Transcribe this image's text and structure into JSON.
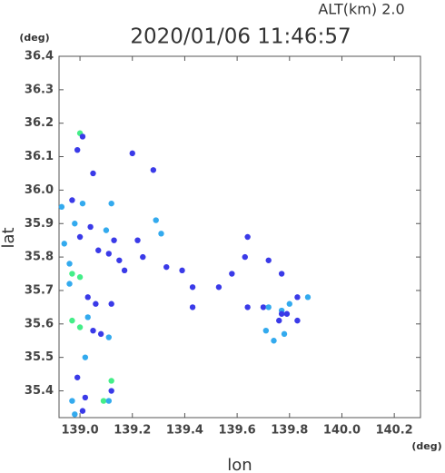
{
  "chart_data": {
    "type": "scatter",
    "subtitle": "ALT(km)  2.0",
    "title": "2020/01/06 11:46:57",
    "y_unit": "(deg)",
    "x_unit": "(deg)",
    "y_label": "lat",
    "x_label": "lon",
    "xlim": [
      138.92,
      140.3
    ],
    "ylim": [
      35.32,
      36.4
    ],
    "xticks": [
      {
        "value": 139,
        "label": "139.0"
      },
      139.2,
      139.4,
      139.6,
      139.8,
      {
        "value": 140,
        "label": "140.0"
      },
      140.2
    ],
    "yticks": [
      36.4,
      36.3,
      36.2,
      36.1,
      {
        "value": 36,
        "label": "36.0"
      },
      35.9,
      35.8,
      35.7,
      35.6,
      35.5,
      35.4
    ],
    "x": [
      139.0,
      139.01,
      138.99,
      139.05,
      138.97,
      139.01,
      138.93,
      138.98,
      139.04,
      139.1,
      139.0,
      138.94,
      138.96,
      138.97,
      139.0,
      138.96,
      139.06,
      139.03,
      138.97,
      139.0,
      139.05,
      139.08,
      139.11,
      139.02,
      138.99,
      139.12,
      139.12,
      139.02,
      138.97,
      139.09,
      139.11,
      139.01,
      138.98,
      139.12,
      139.13,
      139.07,
      139.11,
      139.15,
      139.2,
      139.28,
      139.22,
      139.29,
      139.31,
      139.24,
      139.33,
      139.39,
      139.17,
      139.43,
      139.43,
      139.53,
      139.64,
      139.63,
      139.58,
      139.72,
      139.77,
      139.7,
      139.72,
      139.77,
      139.77,
      139.76,
      139.79,
      139.8,
      139.83,
      139.87,
      139.83,
      139.78,
      139.74,
      139.71,
      139.64,
      139.12,
      139.03
    ],
    "y": [
      36.17,
      36.16,
      36.12,
      36.05,
      35.97,
      35.96,
      35.95,
      35.9,
      35.89,
      35.88,
      35.86,
      35.84,
      35.78,
      35.75,
      35.74,
      35.72,
      35.66,
      35.68,
      35.61,
      35.59,
      35.58,
      35.57,
      35.56,
      35.5,
      35.44,
      35.43,
      35.4,
      35.38,
      35.37,
      35.37,
      35.37,
      35.34,
      35.33,
      35.96,
      35.85,
      35.82,
      35.81,
      35.79,
      36.11,
      36.06,
      35.85,
      35.91,
      35.87,
      35.8,
      35.77,
      35.76,
      35.76,
      35.71,
      35.65,
      35.71,
      35.86,
      35.8,
      35.75,
      35.79,
      35.75,
      35.65,
      35.65,
      35.64,
      35.63,
      35.61,
      35.63,
      35.66,
      35.68,
      35.68,
      35.61,
      35.57,
      35.55,
      35.58,
      35.65,
      35.66,
      35.62
    ],
    "colors": [
      "#44ee88",
      "#3a3ae8",
      "#3a3ae8",
      "#3a3ae8",
      "#3a3ae8",
      "#33aaee",
      "#33aaee",
      "#33aaee",
      "#3a3ae8",
      "#33aaee",
      "#3a3ae8",
      "#33aaee",
      "#33aaee",
      "#44ee88",
      "#44ee88",
      "#33aaee",
      "#3a3ae8",
      "#3a3ae8",
      "#44ee88",
      "#44ee88",
      "#3a3ae8",
      "#3a3ae8",
      "#33aaee",
      "#33aaee",
      "#3a3ae8",
      "#44ee88",
      "#3a3ae8",
      "#3a3ae8",
      "#33aaee",
      "#44ee88",
      "#33aaee",
      "#3a3ae8",
      "#33aaee",
      "#33aaee",
      "#3a3ae8",
      "#3a3ae8",
      "#3a3ae8",
      "#3a3ae8",
      "#3a3ae8",
      "#3a3ae8",
      "#3a3ae8",
      "#33aaee",
      "#33aaee",
      "#3a3ae8",
      "#3a3ae8",
      "#3a3ae8",
      "#3a3ae8",
      "#3a3ae8",
      "#3a3ae8",
      "#3a3ae8",
      "#3a3ae8",
      "#3a3ae8",
      "#3a3ae8",
      "#3a3ae8",
      "#3a3ae8",
      "#3a3ae8",
      "#33aaee",
      "#33aaee",
      "#3a3ae8",
      "#3a3ae8",
      "#3a3ae8",
      "#33aaee",
      "#3a3ae8",
      "#33aaee",
      "#3a3ae8",
      "#33aaee",
      "#33aaee",
      "#33aaee",
      "#3a3ae8",
      "#3a3ae8",
      "#33aaee"
    ]
  }
}
